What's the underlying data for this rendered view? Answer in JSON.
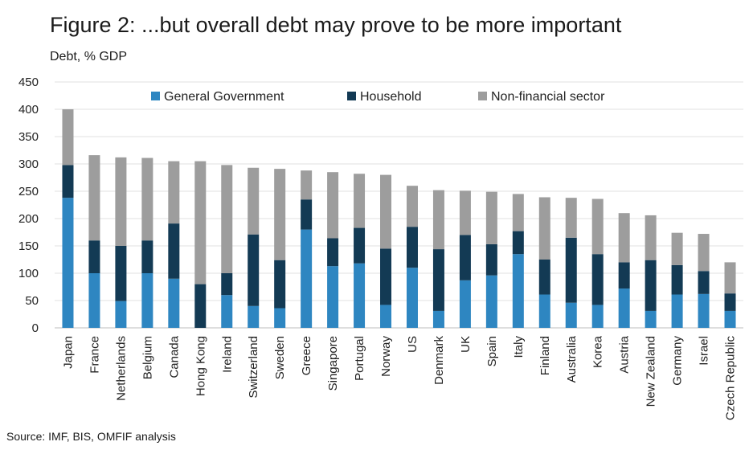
{
  "title": "Figure 2: ...but overall debt may prove to be more important",
  "subtitle": "Debt, % GDP",
  "source": "Source: IMF, BIS, OMFIF analysis",
  "colors": {
    "general_government": "#2e86c1",
    "household": "#133a54",
    "non_financial": "#9d9d9d"
  },
  "chart_data": {
    "type": "bar",
    "stacked": true,
    "title": "Figure 2: ...but overall debt may prove to be more important",
    "ylabel": "Debt, % GDP",
    "xlabel": "",
    "ylim": [
      0,
      450
    ],
    "yticks": [
      0,
      50,
      100,
      150,
      200,
      250,
      300,
      350,
      400,
      450
    ],
    "legend_position": "top",
    "categories": [
      "Japan",
      "France",
      "Netherlands",
      "Belgium",
      "Canada",
      "Hong Kong",
      "Ireland",
      "Switzerland",
      "Sweden",
      "Greece",
      "Singapore",
      "Portugal",
      "Norway",
      "US",
      "Denmark",
      "UK",
      "Spain",
      "Italy",
      "Finland",
      "Australia",
      "Korea",
      "Austria",
      "New Zealand",
      "Germany",
      "Israel",
      "Czech Republic"
    ],
    "series": [
      {
        "name": "General Government",
        "values": [
          238,
          100,
          49,
          100,
          90,
          0,
          60,
          40,
          36,
          180,
          113,
          118,
          42,
          110,
          31,
          87,
          96,
          135,
          61,
          46,
          42,
          72,
          31,
          61,
          62,
          31
        ]
      },
      {
        "name": "Household",
        "values": [
          60,
          60,
          101,
          60,
          101,
          80,
          40,
          131,
          88,
          55,
          51,
          65,
          103,
          75,
          113,
          83,
          57,
          42,
          64,
          119,
          93,
          48,
          93,
          54,
          42,
          32
        ]
      },
      {
        "name": "Non-financial sector",
        "values": [
          102,
          156,
          162,
          151,
          114,
          225,
          198,
          122,
          167,
          53,
          121,
          99,
          135,
          75,
          108,
          81,
          96,
          68,
          114,
          73,
          101,
          90,
          82,
          59,
          68,
          57
        ]
      }
    ]
  }
}
